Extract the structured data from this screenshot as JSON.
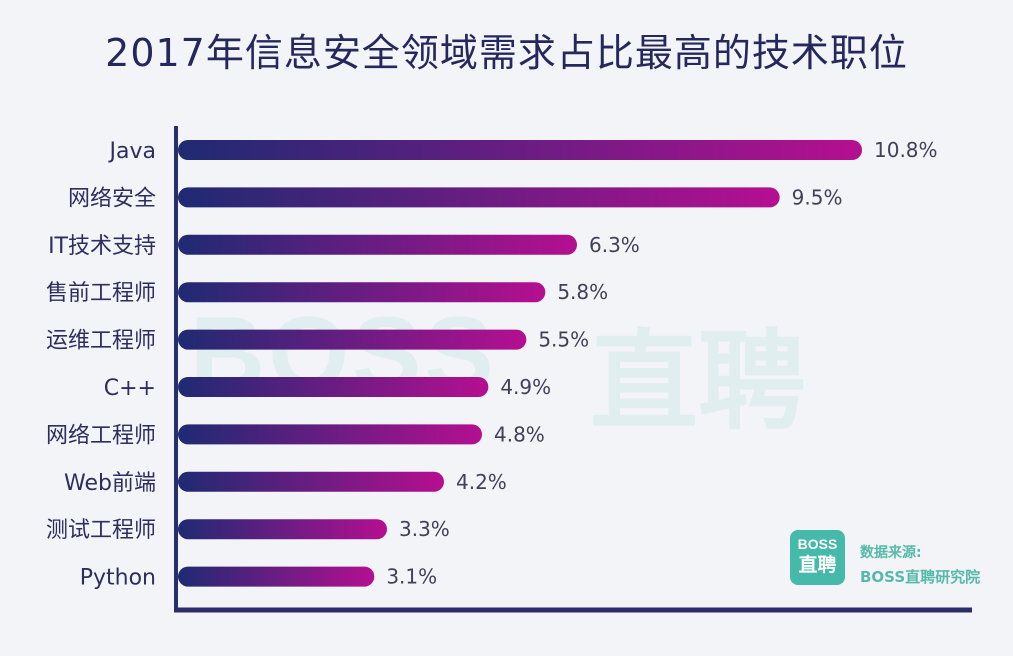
{
  "chart_data": {
    "type": "bar",
    "orientation": "horizontal",
    "title": "2017年信息安全领域需求占比最高的技术职位",
    "categories": [
      "Java",
      "网络安全",
      "IT技术支持",
      "售前工程师",
      "运维工程师",
      "C++",
      "网络工程师",
      "Web前端",
      "测试工程师",
      "Python"
    ],
    "values": [
      10.8,
      9.5,
      6.3,
      5.8,
      5.5,
      4.9,
      4.8,
      4.2,
      3.3,
      3.1
    ],
    "value_labels": [
      "10.8%",
      "9.5%",
      "6.3%",
      "5.8%",
      "5.5%",
      "4.9%",
      "4.8%",
      "4.2%",
      "3.3%",
      "3.1%"
    ],
    "xlim": [
      0,
      10.8
    ],
    "grid": false,
    "legend": "none"
  },
  "colors": {
    "title": "#25285c",
    "axis": "#2a2e6b",
    "bar_start": "#1f2a73",
    "bar_end": "#b50f91",
    "source": "#57b9aa",
    "logo": "#45b9aa",
    "watermark": "#d9ecec"
  },
  "watermark": {
    "latin": "BOSS",
    "cjk": "直聘"
  },
  "logo": {
    "top": "BOSS",
    "bottom": "直聘"
  },
  "source": {
    "label": "数据来源:",
    "name": "BOSS直聘研究院"
  }
}
